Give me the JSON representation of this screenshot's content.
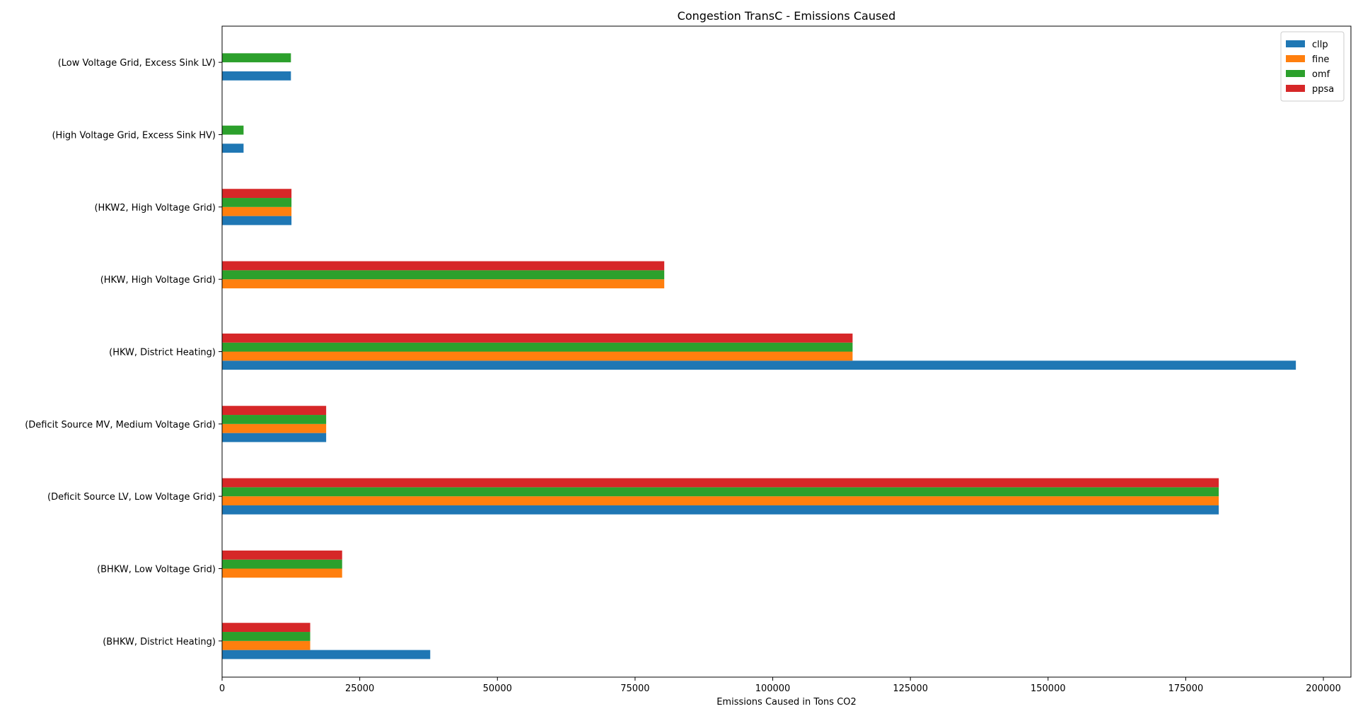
{
  "chart_data": {
    "type": "bar",
    "orientation": "horizontal",
    "title": "Congestion TransC - Emissions Caused",
    "xlabel": "Emissions Caused in Tons CO2",
    "ylabel": "",
    "xlim": [
      0,
      205000
    ],
    "xticks": [
      0,
      25000,
      50000,
      75000,
      100000,
      125000,
      150000,
      175000,
      200000
    ],
    "xtick_labels": [
      "0",
      "25000",
      "50000",
      "75000",
      "100000",
      "125000",
      "150000",
      "175000",
      "200000"
    ],
    "categories": [
      "(BHKW, District Heating)",
      "(BHKW, Low Voltage Grid)",
      "(Deficit Source LV, Low Voltage Grid)",
      "(Deficit Source MV, Medium Voltage Grid)",
      "(HKW, District Heating)",
      "(HKW, High Voltage Grid)",
      "(HKW2, High Voltage Grid)",
      "(High Voltage Grid, Excess Sink HV)",
      "(Low Voltage Grid, Excess Sink LV)"
    ],
    "series": [
      {
        "name": "cllp",
        "color": "#1f77b4",
        "values": [
          37800,
          0,
          181000,
          18900,
          195000,
          0,
          12600,
          3900,
          12500
        ]
      },
      {
        "name": "fine",
        "color": "#ff7f0e",
        "values": [
          16000,
          21800,
          181000,
          18900,
          114500,
          80300,
          12600,
          0,
          0
        ]
      },
      {
        "name": "omf",
        "color": "#2ca02c",
        "values": [
          16000,
          21800,
          181000,
          18900,
          114500,
          80300,
          12600,
          3900,
          12500
        ]
      },
      {
        "name": "ppsa",
        "color": "#d62728",
        "values": [
          16000,
          21800,
          181000,
          18900,
          114500,
          80300,
          12600,
          0,
          0
        ]
      }
    ],
    "legend_position": "top-right",
    "grid": false
  }
}
